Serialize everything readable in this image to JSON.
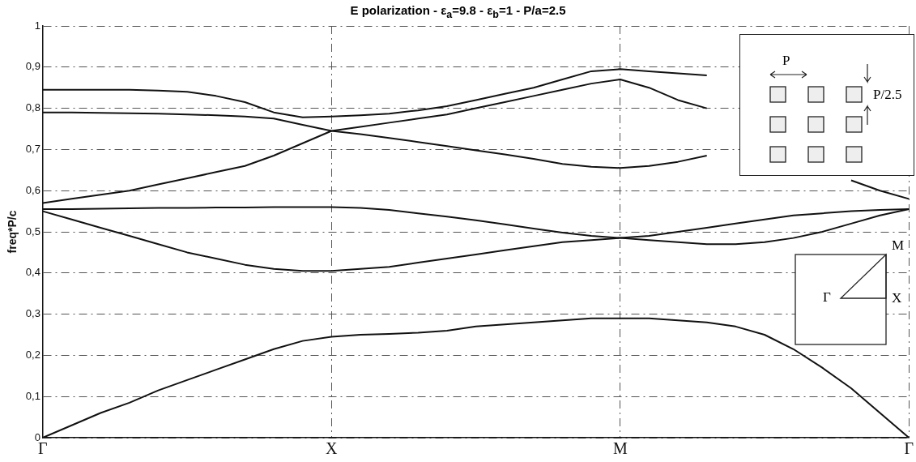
{
  "chart_data": {
    "type": "line",
    "title": "E polarization - ε$_{a}$=9.8 - ε$_{b}$=1 - P/a=2.5",
    "ylabel": "freq*P/c",
    "categories": [
      "Γ",
      null,
      null,
      null,
      null,
      null,
      null,
      null,
      null,
      null,
      "X",
      null,
      null,
      null,
      null,
      null,
      null,
      null,
      null,
      null,
      "M",
      null,
      null,
      null,
      null,
      null,
      null,
      null,
      null,
      null,
      "Γ"
    ],
    "ylim": [
      0,
      1
    ],
    "yticks": [
      {
        "value": 0,
        "label": "0"
      },
      {
        "value": 0.1,
        "label": "0,1"
      },
      {
        "value": 0.2,
        "label": "0,2"
      },
      {
        "value": 0.3,
        "label": "0,3"
      },
      {
        "value": 0.4,
        "label": "0,4"
      },
      {
        "value": 0.5,
        "label": "0,5"
      },
      {
        "value": 0.6,
        "label": "0,6"
      },
      {
        "value": 0.7,
        "label": "0,7"
      },
      {
        "value": 0.8,
        "label": "0,8"
      },
      {
        "value": 0.9,
        "label": "0,9"
      },
      {
        "value": 1,
        "label": "1"
      }
    ],
    "grid": true,
    "legend": false,
    "marker": "none",
    "line_style": "solid",
    "annotations": [
      "P",
      "P/2.5",
      "M",
      "Γ",
      "X"
    ],
    "series": [
      {
        "color": "#111111",
        "values": [
          0,
          0.03,
          0.06,
          0.085,
          0.115,
          0.14,
          0.165,
          0.19,
          0.215,
          0.235,
          0.245,
          0.25,
          0.252,
          0.255,
          0.26,
          0.27,
          0.275,
          0.28,
          0.285,
          0.29,
          0.29,
          0.29,
          0.285,
          0.28,
          0.27,
          0.25,
          0.215,
          0.17,
          0.12,
          0.06,
          0
        ]
      },
      {
        "color": "#111111",
        "values": [
          0.55,
          0.53,
          0.51,
          0.49,
          0.47,
          0.45,
          0.435,
          0.42,
          0.41,
          0.405,
          0.405,
          0.41,
          0.415,
          0.425,
          0.435,
          0.445,
          0.455,
          0.465,
          0.475,
          0.48,
          0.485,
          0.49,
          0.5,
          0.51,
          0.52,
          0.53,
          0.54,
          0.545,
          0.55,
          0.553,
          0.555
        ]
      },
      {
        "color": "#111111",
        "values": [
          0.555,
          0.555,
          0.556,
          0.557,
          0.558,
          0.558,
          0.559,
          0.559,
          0.56,
          0.56,
          0.56,
          0.558,
          0.553,
          0.545,
          0.537,
          0.528,
          0.518,
          0.508,
          0.498,
          0.49,
          0.485,
          0.48,
          0.475,
          0.47,
          0.47,
          0.475,
          0.485,
          0.5,
          0.52,
          0.54,
          0.555
        ]
      },
      {
        "color": "#111111",
        "values": [
          0.57,
          0.58,
          0.59,
          0.6,
          0.615,
          0.63,
          0.645,
          0.66,
          0.685,
          0.715,
          0.745,
          0.755,
          0.765,
          0.775,
          0.785,
          0.8,
          0.815,
          0.83,
          0.845,
          0.86,
          0.87,
          0.85,
          0.82,
          0.8,
          null,
          null,
          null,
          null,
          0.625,
          0.6,
          0.58
        ]
      },
      {
        "color": "#111111",
        "values": [
          0.79,
          0.79,
          0.789,
          0.788,
          0.787,
          0.785,
          0.783,
          0.78,
          0.775,
          0.76,
          0.745,
          0.737,
          0.728,
          0.718,
          0.708,
          0.698,
          0.688,
          0.677,
          0.665,
          0.658,
          0.655,
          0.66,
          0.67,
          0.685,
          null,
          null,
          null,
          null,
          null,
          null,
          null
        ]
      },
      {
        "color": "#111111",
        "values": [
          0.845,
          0.845,
          0.845,
          0.845,
          0.843,
          0.84,
          0.83,
          0.815,
          0.79,
          0.778,
          0.78,
          0.783,
          0.787,
          0.795,
          0.805,
          0.82,
          0.835,
          0.85,
          0.87,
          0.89,
          0.895,
          0.89,
          0.885,
          0.88,
          null,
          null,
          null,
          null,
          null,
          null,
          null
        ]
      }
    ]
  }
}
